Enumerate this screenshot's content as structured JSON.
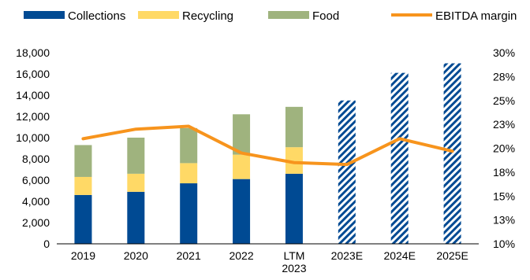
{
  "chart_data": {
    "type": "bar",
    "stacked": true,
    "categories": [
      "2019",
      "2020",
      "2021",
      "2022",
      "LTM 2023",
      "2023E",
      "2024E",
      "2025E"
    ],
    "category_lines": [
      [
        "2019"
      ],
      [
        "2020"
      ],
      [
        "2021"
      ],
      [
        "2022"
      ],
      [
        "LTM",
        "2023"
      ],
      [
        "2023E"
      ],
      [
        "2024E"
      ],
      [
        "2025E"
      ]
    ],
    "series": [
      {
        "name": "Collections",
        "color": "#004a93",
        "values": [
          4600,
          4900,
          5700,
          6100,
          6600,
          null,
          null,
          null
        ]
      },
      {
        "name": "Recycling",
        "color": "#ffd966",
        "values": [
          1700,
          1700,
          1900,
          2300,
          2500,
          null,
          null,
          null
        ]
      },
      {
        "name": "Food",
        "color": "#9fb37e",
        "values": [
          3000,
          3400,
          3300,
          3800,
          3800,
          null,
          null,
          null
        ]
      }
    ],
    "estimate_totals": [
      null,
      null,
      null,
      null,
      null,
      13500,
      16100,
      17000
    ],
    "estimate_color": "#004a93",
    "line_series": {
      "name": "EBITDA margin",
      "color": "#f7941d",
      "values": [
        21.0,
        22.0,
        22.3,
        19.5,
        18.5,
        18.3,
        21.0,
        19.7
      ]
    },
    "legend": [
      {
        "name": "Collections",
        "kind": "bar",
        "color": "#004a93"
      },
      {
        "name": "Recycling",
        "kind": "bar",
        "color": "#ffd966"
      },
      {
        "name": "Food",
        "kind": "bar",
        "color": "#9fb37e"
      },
      {
        "name": "EBITDA margin",
        "kind": "line",
        "color": "#f7941d"
      }
    ],
    "legend_position": "top",
    "y_left": {
      "min": 0,
      "max": 18000,
      "ticks": [
        0,
        2000,
        4000,
        6000,
        8000,
        10000,
        12000,
        14000,
        16000,
        18000
      ]
    },
    "y_left_tick_labels": [
      "0",
      "2,000",
      "4,000",
      "6,000",
      "8,000",
      "10,000",
      "12,000",
      "14,000",
      "16,000",
      "18,000"
    ],
    "y_right": {
      "min": 10,
      "max": 30,
      "ticks": [
        10,
        12.5,
        15,
        17.5,
        20,
        22.5,
        25,
        27.5,
        30
      ]
    },
    "y_right_tick_labels": [
      "10%",
      "13%",
      "15%",
      "18%",
      "20%",
      "23%",
      "25%",
      "28%",
      "30%"
    ],
    "grid": false,
    "title": "",
    "xlabel": "",
    "ylabel": ""
  }
}
